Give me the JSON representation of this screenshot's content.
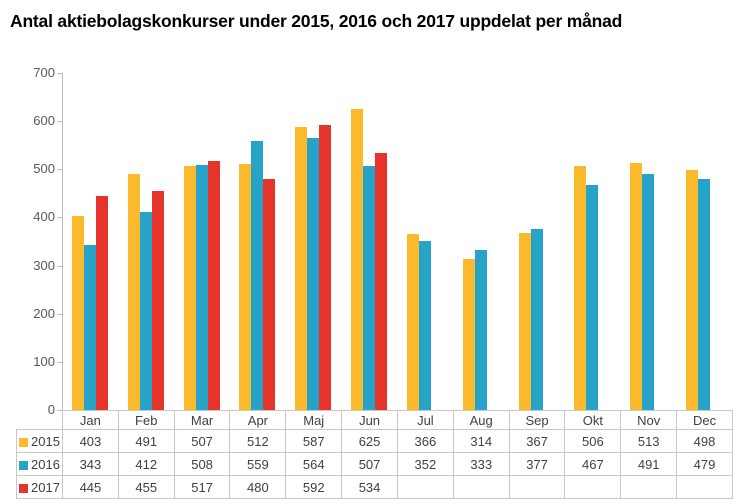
{
  "title": "Antal aktiebolagskonkurser under 2015, 2016 och 2017 uppdelat per månad",
  "chart_data": {
    "type": "bar",
    "title": "Antal aktiebolagskonkurser under 2015, 2016 och 2017 uppdelat per månad",
    "categories": [
      "Jan",
      "Feb",
      "Mar",
      "Apr",
      "Maj",
      "Jun",
      "Jul",
      "Aug",
      "Sep",
      "Okt",
      "Nov",
      "Dec"
    ],
    "series": [
      {
        "name": "2015",
        "color": "#FBB92C",
        "values": [
          403,
          491,
          507,
          512,
          587,
          625,
          366,
          314,
          367,
          506,
          513,
          498
        ]
      },
      {
        "name": "2016",
        "color": "#27A2C9",
        "values": [
          343,
          412,
          508,
          559,
          564,
          507,
          352,
          333,
          377,
          467,
          491,
          479
        ]
      },
      {
        "name": "2017",
        "color": "#E7342B",
        "values": [
          445,
          455,
          517,
          480,
          592,
          534,
          null,
          null,
          null,
          null,
          null,
          null
        ]
      }
    ],
    "xlabel": "",
    "ylabel": "",
    "ylim": [
      0,
      700
    ],
    "yticks": [
      0,
      100,
      200,
      300,
      400,
      500,
      600,
      700
    ],
    "grid": false,
    "legend_position": "data-table-left"
  }
}
